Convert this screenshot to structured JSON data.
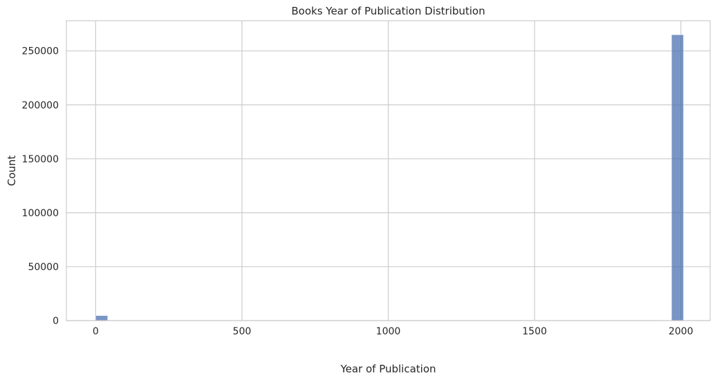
{
  "chart_data": {
    "type": "bar",
    "title": "Books Year of Publication Distribution",
    "xlabel": "Year of Publication",
    "ylabel": "Count",
    "xlim": [
      -100,
      2100
    ],
    "ylim": [
      0,
      278000
    ],
    "xticks": [
      0,
      500,
      1000,
      1500,
      2000
    ],
    "yticks": [
      0,
      50000,
      100000,
      150000,
      200000,
      250000
    ],
    "grid": true,
    "bar_color": "#4c72b0",
    "bins": [
      {
        "x0": 0,
        "x1": 41,
        "count": 4600
      },
      {
        "x0": 1927,
        "x1": 1968,
        "count": 300
      },
      {
        "x0": 1968,
        "x1": 2009,
        "count": 265000
      },
      {
        "x0": 2009,
        "x1": 2050,
        "count": 50
      }
    ]
  }
}
